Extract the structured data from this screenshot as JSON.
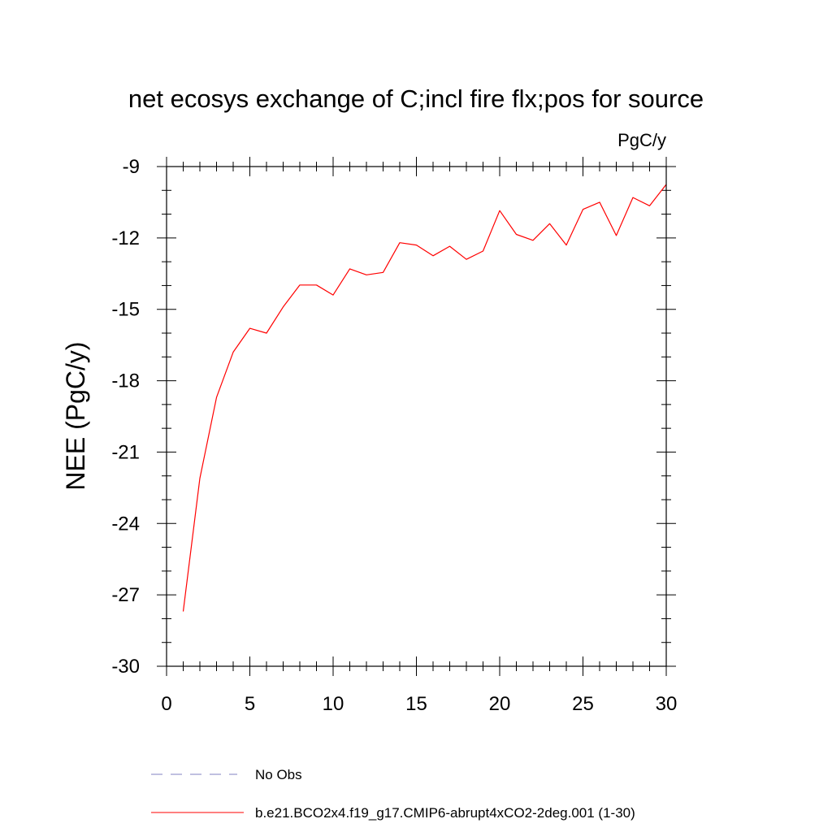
{
  "chart_data": {
    "type": "line",
    "title": "net ecosys exchange of C;incl fire flx;pos for source",
    "units_label": "PgC/y",
    "ylabel": "NEE  (PgC/y)",
    "xlabel": "",
    "xlim": [
      0,
      30
    ],
    "ylim": [
      -30,
      -9
    ],
    "xticks": [
      0,
      5,
      10,
      15,
      20,
      25,
      30
    ],
    "yticks": [
      -30,
      -27,
      -24,
      -21,
      -18,
      -15,
      -12,
      -9
    ],
    "x_tick_labels": [
      "0",
      "5",
      "10",
      "15",
      "20",
      "25",
      "30"
    ],
    "y_tick_labels": [
      "-30",
      "-27",
      "-24",
      "-21",
      "-18",
      "-15",
      "-12",
      "-9"
    ],
    "grid": false,
    "legend_placement": "bottom",
    "series": [
      {
        "name": "b.e21.BCO2x4.f19_g17.CMIP6-abrupt4xCO2-2deg.001 (1-30)",
        "color": "#ff0000",
        "style": "solid",
        "x": [
          1,
          2,
          3,
          4,
          5,
          6,
          7,
          8,
          9,
          10,
          11,
          12,
          13,
          14,
          15,
          16,
          17,
          18,
          19,
          20,
          21,
          22,
          23,
          24,
          25,
          26,
          27,
          28,
          29,
          30
        ],
        "values": [
          -27.7,
          -22.1,
          -18.7,
          -16.8,
          -15.8,
          -16.0,
          -14.9,
          -13.98,
          -13.98,
          -14.4,
          -13.3,
          -13.55,
          -13.45,
          -12.2,
          -12.3,
          -12.75,
          -12.35,
          -12.9,
          -12.55,
          -10.85,
          -11.85,
          -12.1,
          -11.4,
          -12.3,
          -10.8,
          -10.5,
          -11.9,
          -10.3,
          -10.65,
          -9.75
        ]
      }
    ],
    "legend": [
      {
        "label": "No Obs",
        "color": "#8080c0",
        "style": "dashed"
      },
      {
        "label": "b.e21.BCO2x4.f19_g17.CMIP6-abrupt4xCO2-2deg.001 (1-30)",
        "color": "#ff0000",
        "style": "solid"
      }
    ]
  }
}
